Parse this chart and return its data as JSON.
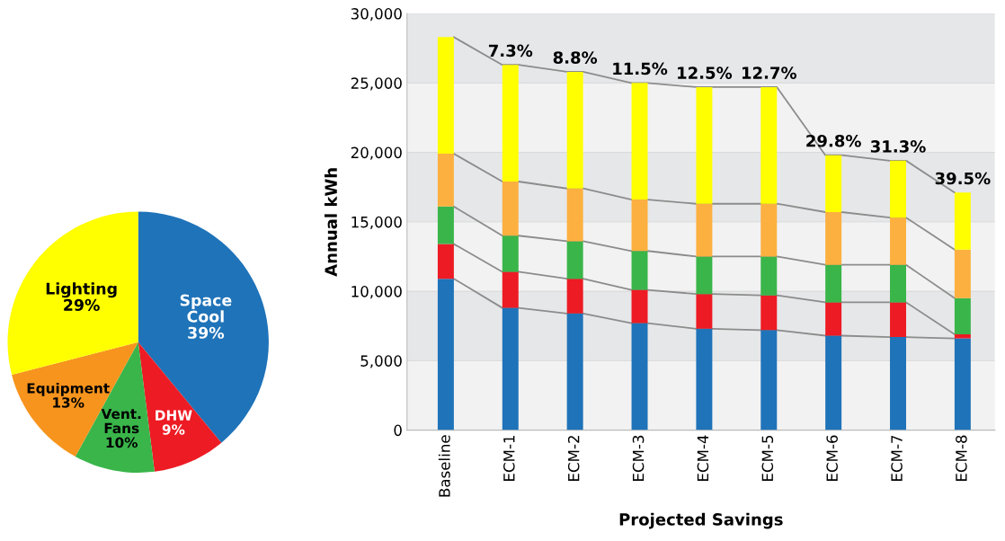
{
  "chart_data": [
    {
      "type": "pie",
      "categories": [
        "Space Cool",
        "DHW",
        "Vent. Fans",
        "Equipment",
        "Lighting"
      ],
      "values": [
        39,
        9,
        10,
        13,
        29
      ],
      "colors": [
        "#1f73b8",
        "#ed1c24",
        "#39b54a",
        "#f7941d",
        "#ffff00"
      ],
      "value_labels": [
        "39%",
        "9%",
        "10%",
        "13%",
        "29%"
      ]
    },
    {
      "type": "bar",
      "stacked": true,
      "xlabel": "Projected Savings",
      "ylabel": "Annual kWh",
      "categories": [
        "Baseline",
        "ECM-1",
        "ECM-2",
        "ECM-3",
        "ECM-4",
        "ECM-5",
        "ECM-6",
        "ECM-7",
        "ECM-8"
      ],
      "series": [
        {
          "color": "#1f73b8",
          "values": [
            10900,
            8800,
            8400,
            7700,
            7300,
            7200,
            6800,
            6700,
            6600
          ]
        },
        {
          "color": "#ed1c24",
          "values": [
            2500,
            2600,
            2500,
            2400,
            2500,
            2500,
            2400,
            2500,
            300
          ]
        },
        {
          "color": "#39b54a",
          "values": [
            2700,
            2600,
            2700,
            2800,
            2700,
            2800,
            2700,
            2700,
            2600
          ]
        },
        {
          "color": "#fbb040",
          "values": [
            3800,
            3900,
            3800,
            3700,
            3800,
            3800,
            3800,
            3400,
            3500
          ]
        },
        {
          "color": "#ffff00",
          "values": [
            8400,
            8400,
            8400,
            8400,
            8400,
            8400,
            4100,
            4100,
            4100
          ]
        }
      ],
      "ylim": [
        0,
        30000
      ],
      "yticks": [
        {
          "value": 0,
          "label": "0"
        },
        {
          "value": 5000,
          "label": "5,000"
        },
        {
          "value": 10000,
          "label": "10,000"
        },
        {
          "value": 15000,
          "label": "15,000"
        },
        {
          "value": 20000,
          "label": "20,000"
        },
        {
          "value": 25000,
          "label": "25,000"
        },
        {
          "value": 30000,
          "label": "30,000"
        }
      ],
      "grid": "y",
      "legend": false,
      "annotations": [
        {
          "text": "7.3%",
          "x": "ECM-1",
          "y": 26300
        },
        {
          "text": "8.8%",
          "x": "ECM-2",
          "y": 25800
        },
        {
          "text": "11.5%",
          "x": "ECM-3",
          "y": 25000
        },
        {
          "text": "12.5%",
          "x": "ECM-4",
          "y": 24700
        },
        {
          "text": "12.7%",
          "x": "ECM-5",
          "y": 24700
        },
        {
          "text": "29.8%",
          "x": "ECM-6",
          "y": 19800
        },
        {
          "text": "31.3%",
          "x": "ECM-7",
          "y": 19400
        },
        {
          "text": "39.5%",
          "x": "ECM-8",
          "y": 17100
        }
      ]
    }
  ]
}
